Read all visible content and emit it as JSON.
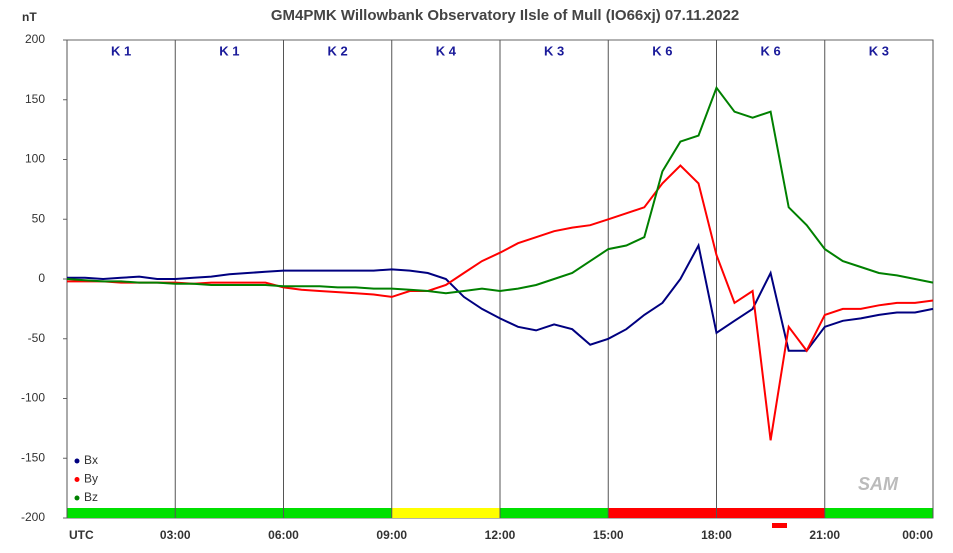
{
  "chart_data": {
    "type": "line",
    "title": "GM4PMK Willowbank Observatory Ilsle of Mull  (IO66xj)  07.11.2022",
    "y_label": "nT",
    "logo": "SAM",
    "x": [
      0,
      0.5,
      1,
      1.5,
      2,
      2.5,
      3,
      3.5,
      4,
      4.5,
      5,
      5.5,
      6,
      6.5,
      7,
      7.5,
      8,
      8.5,
      9,
      9.5,
      10,
      10.5,
      11,
      11.5,
      12,
      12.5,
      13,
      13.5,
      14,
      14.5,
      15,
      15.5,
      16,
      16.5,
      17,
      17.5,
      18,
      18.5,
      19,
      19.5,
      20,
      20.5,
      21,
      21.5,
      22,
      22.5,
      23,
      23.5,
      24
    ],
    "series": [
      {
        "name": "Bx",
        "color": "#000080",
        "values": [
          1,
          1,
          0,
          1,
          2,
          0,
          0,
          1,
          2,
          4,
          5,
          6,
          7,
          7,
          7,
          7,
          7,
          7,
          8,
          7,
          5,
          0,
          -15,
          -25,
          -33,
          -40,
          -43,
          -38,
          -42,
          -55,
          -50,
          -42,
          -30,
          -20,
          0,
          28,
          -45,
          -35,
          -25,
          5,
          -60,
          -60,
          -40,
          -35,
          -33,
          -30,
          -28,
          -28,
          -25
        ]
      },
      {
        "name": "By",
        "color": "#ff0000",
        "values": [
          -2,
          -2,
          -2,
          -3,
          -3,
          -3,
          -3,
          -4,
          -3,
          -3,
          -3,
          -3,
          -7,
          -9,
          -10,
          -11,
          -12,
          -13,
          -15,
          -10,
          -10,
          -5,
          5,
          15,
          22,
          30,
          35,
          40,
          43,
          45,
          50,
          55,
          60,
          80,
          95,
          80,
          20,
          -20,
          -10,
          -135,
          -40,
          -60,
          -30,
          -25,
          -25,
          -22,
          -20,
          -20,
          -18
        ]
      },
      {
        "name": "Bz",
        "color": "#008000",
        "values": [
          0,
          -1,
          -2,
          -2,
          -3,
          -3,
          -4,
          -4,
          -5,
          -5,
          -5,
          -5,
          -6,
          -6,
          -6,
          -7,
          -7,
          -8,
          -8,
          -9,
          -10,
          -12,
          -10,
          -8,
          -10,
          -8,
          -5,
          0,
          5,
          15,
          25,
          28,
          35,
          90,
          115,
          120,
          160,
          140,
          135,
          140,
          60,
          45,
          25,
          15,
          10,
          5,
          3,
          0,
          -3
        ]
      }
    ],
    "xlim": [
      0,
      24
    ],
    "xticks": [
      {
        "value": 0,
        "label": "UTC"
      },
      {
        "value": 3,
        "label": "03:00"
      },
      {
        "value": 6,
        "label": "06:00"
      },
      {
        "value": 9,
        "label": "09:00"
      },
      {
        "value": 12,
        "label": "12:00"
      },
      {
        "value": 15,
        "label": "15:00"
      },
      {
        "value": 18,
        "label": "18:00"
      },
      {
        "value": 21,
        "label": "21:00"
      },
      {
        "value": 24,
        "label": "00:00"
      }
    ],
    "ylim": [
      -200,
      200
    ],
    "yticks": [
      -200,
      -150,
      -100,
      -50,
      0,
      50,
      100,
      150,
      200
    ],
    "k_index": {
      "labels": [
        "K 1",
        "K 1",
        "K 2",
        "K 4",
        "K 3",
        "K 6",
        "K 6",
        "K 3"
      ],
      "colors": [
        "#00e000",
        "#00e000",
        "#00e000",
        "#ffff00",
        "#00e000",
        "#ff0000",
        "#ff0000",
        "#00e000"
      ]
    },
    "legend": "lower left"
  }
}
